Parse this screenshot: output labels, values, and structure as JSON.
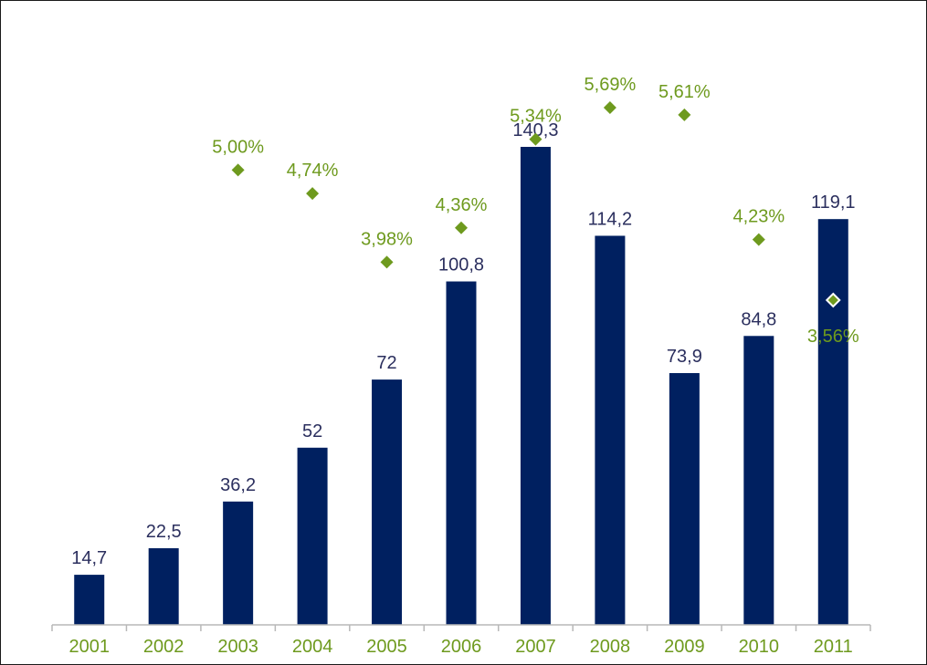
{
  "chart_data": {
    "type": "bar",
    "categories": [
      "2001",
      "2002",
      "2003",
      "2004",
      "2005",
      "2006",
      "2007",
      "2008",
      "2009",
      "2010",
      "2011"
    ],
    "series": [
      {
        "type": "bar",
        "values": [
          14.7,
          22.5,
          36.2,
          52,
          72,
          100.8,
          140.3,
          114.2,
          73.9,
          84.8,
          119.1
        ],
        "labels": [
          "14,7",
          "22,5",
          "36,2",
          "52",
          "72",
          "100,8",
          "140,3",
          "114,2",
          "73,9",
          "84,8",
          "119,1"
        ],
        "color": "#002060"
      },
      {
        "type": "scatter",
        "marker": "diamond",
        "values": [
          null,
          null,
          5.0,
          4.74,
          3.98,
          4.36,
          5.34,
          5.69,
          5.61,
          4.23,
          3.56
        ],
        "labels": [
          "",
          "",
          "5,00%",
          "4,74%",
          "3,98%",
          "4,36%",
          "5,34%",
          "5,69%",
          "5,61%",
          "4,23%",
          "3,56%"
        ],
        "color": "#6e9a1e"
      }
    ],
    "title": "",
    "xlabel": "",
    "ylabel": "",
    "bar_ylim": [
      0,
      145
    ],
    "pct_ylim": [
      0,
      6.5
    ],
    "grid": false,
    "legend": "none"
  }
}
